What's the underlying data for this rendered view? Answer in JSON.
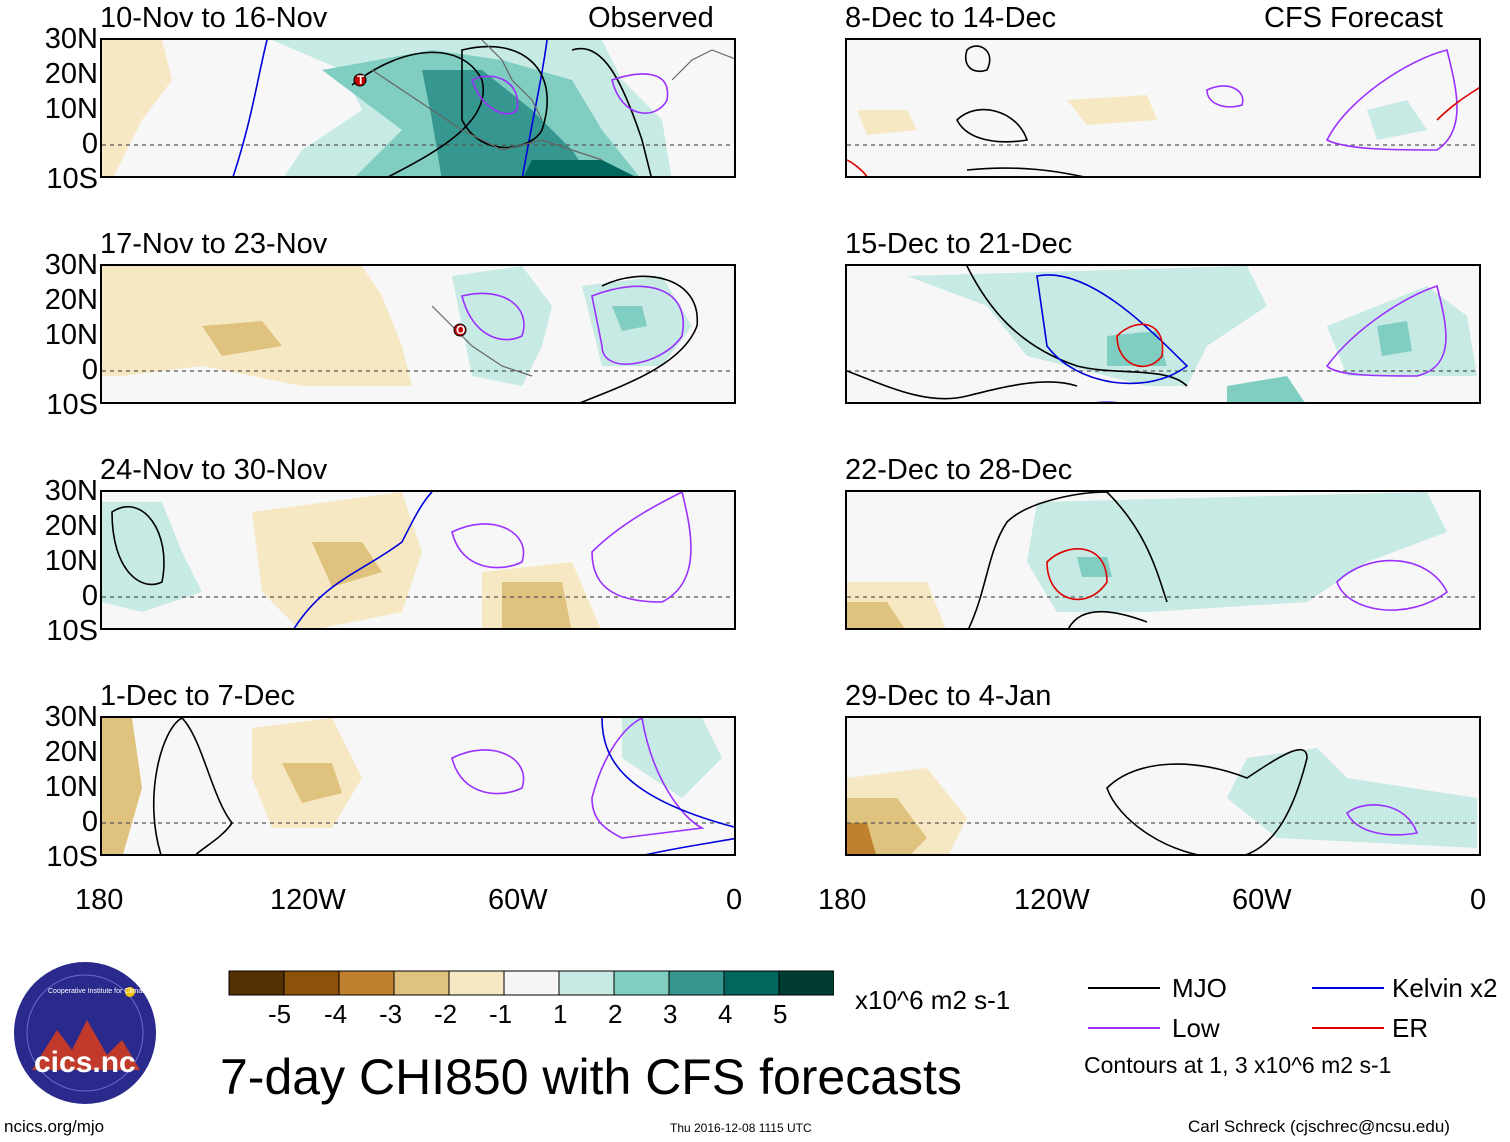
{
  "header": {
    "left_label": "Observed",
    "right_label": "CFS Forecast"
  },
  "panels": [
    {
      "title": "10-Nov to 16-Nov"
    },
    {
      "title": "17-Nov to 23-Nov"
    },
    {
      "title": "24-Nov to 30-Nov"
    },
    {
      "title": "1-Dec to 7-Dec"
    },
    {
      "title": "8-Dec to 14-Dec"
    },
    {
      "title": "15-Dec to 21-Dec"
    },
    {
      "title": "22-Dec to 28-Dec"
    },
    {
      "title": "29-Dec to 4-Jan"
    }
  ],
  "lat_labels": [
    "30N",
    "20N",
    "10N",
    "0",
    "10S"
  ],
  "lon_labels": [
    "180",
    "120W",
    "60W",
    "0"
  ],
  "colorbar": {
    "ticks": [
      "-5",
      "-4",
      "-3",
      "-2",
      "-1",
      "1",
      "2",
      "3",
      "4",
      "5"
    ],
    "colors": [
      "#543005",
      "#8c510a",
      "#bf812d",
      "#dfc27d",
      "#f6e8c3",
      "#f5f5f5",
      "#c7eae5",
      "#80cdc1",
      "#35978f",
      "#01665e",
      "#003c30"
    ],
    "units": "x10^6 m2 s-1"
  },
  "title": "7-day CHI850 with CFS forecasts",
  "legend": {
    "mjo": {
      "label": "MJO",
      "color": "#000000"
    },
    "kelvin": {
      "label": "Kelvin x2",
      "color": "#0000dd"
    },
    "low": {
      "label": "Low",
      "color": "#9b30ff"
    },
    "er": {
      "label": "ER",
      "color": "#e00000"
    },
    "note": "Contours at 1, 3 x10^6 m2 s-1"
  },
  "logo": {
    "text": "cics.nc",
    "ring_text": "Cooperative Institute for Climate and Satellites"
  },
  "footer": {
    "url": "ncics.org/mjo",
    "timestamp": "Thu 2016-12-08 1115 UTC",
    "author": "Carl Schreck (cjschrec@ncsu.edu)"
  },
  "storm_markers": [
    {
      "panel": 0,
      "letter": "T"
    },
    {
      "panel": 1,
      "letter": "O"
    }
  ]
}
